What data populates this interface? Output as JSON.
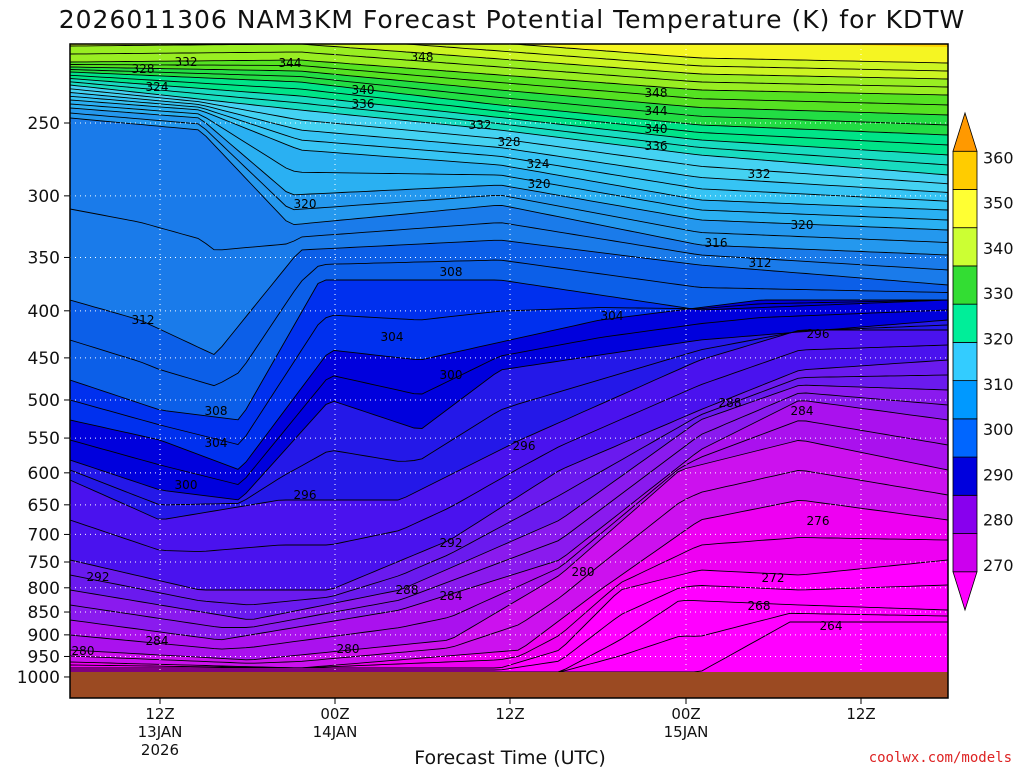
{
  "chart_data": {
    "type": "heatmap",
    "title": "2026011306 NAM3KM Forecast Potential Temperature (K) for KDTW",
    "xlabel": "Forecast Time (UTC)",
    "ylabel": "",
    "y_axis": {
      "scale": "log",
      "reversed": true,
      "ticks": [
        250,
        300,
        350,
        400,
        450,
        500,
        550,
        600,
        650,
        700,
        750,
        800,
        850,
        900,
        950,
        1000
      ]
    },
    "x_axis": {
      "ticks": [
        {
          "line1": "12Z",
          "line2": "13JAN",
          "line3": "2026"
        },
        {
          "line1": "00Z",
          "line2": "14JAN",
          "line3": ""
        },
        {
          "line1": "12Z",
          "line2": "",
          "line3": ""
        },
        {
          "line1": "00Z",
          "line2": "15JAN",
          "line3": ""
        },
        {
          "line1": "12Z",
          "line2": "",
          "line3": ""
        }
      ]
    },
    "colorbar": {
      "levels": [
        270,
        280,
        290,
        300,
        310,
        320,
        330,
        340,
        350,
        360
      ],
      "colors": [
        "#ff00ff",
        "#cc00ee",
        "#8800ee",
        "#0000dd",
        "#0066ff",
        "#0099ff",
        "#33ccff",
        "#00ee99",
        "#33dd33",
        "#ccff33",
        "#ffff33",
        "#ffcc00",
        "#ff9900"
      ]
    },
    "grid": true,
    "contour_labels": [
      {
        "text": "348"
      },
      {
        "text": "344"
      },
      {
        "text": "340"
      },
      {
        "text": "336"
      },
      {
        "text": "332"
      },
      {
        "text": "328"
      },
      {
        "text": "324"
      },
      {
        "text": "320"
      },
      {
        "text": "316"
      },
      {
        "text": "312"
      },
      {
        "text": "308"
      },
      {
        "text": "304"
      },
      {
        "text": "300"
      },
      {
        "text": "296"
      },
      {
        "text": "292"
      },
      {
        "text": "288"
      },
      {
        "text": "284"
      },
      {
        "text": "280"
      },
      {
        "text": "276"
      },
      {
        "text": "272"
      },
      {
        "text": "268"
      },
      {
        "text": "264"
      }
    ]
  },
  "footer": {
    "credit": "coolwx.com/models"
  },
  "colors": {
    "ground": "#9b4a22",
    "grid": "#ffffff"
  }
}
